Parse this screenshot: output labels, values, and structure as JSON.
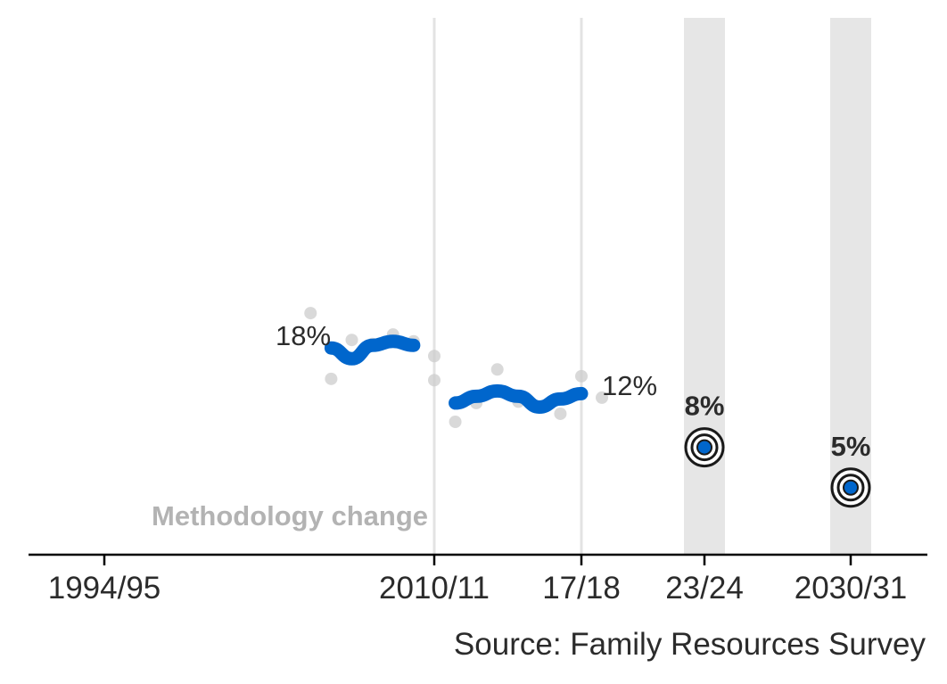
{
  "chart_data": {
    "type": "line",
    "title": "",
    "xlabel": "",
    "ylabel": "",
    "x_ticks": [
      "1994/95",
      "2010/11",
      "17/18",
      "23/24",
      "2030/31"
    ],
    "ylim": [
      0,
      40
    ],
    "series": [
      {
        "role": "annual_estimates",
        "color": "#cccccc",
        "points": [
          {
            "x": 2004,
            "y": 18.0
          },
          {
            "x": 2005,
            "y": 13.1
          },
          {
            "x": 2006,
            "y": 16.0
          },
          {
            "x": 2007,
            "y": 15.7
          },
          {
            "x": 2008,
            "y": 16.4
          },
          {
            "x": 2009,
            "y": 15.9
          },
          {
            "x": 2010,
            "y": 14.8
          },
          {
            "x": 2010,
            "y": 13.0
          },
          {
            "x": 2011,
            "y": 9.9
          },
          {
            "x": 2012,
            "y": 11.3
          },
          {
            "x": 2013,
            "y": 13.8
          },
          {
            "x": 2014,
            "y": 11.4
          },
          {
            "x": 2015,
            "y": 11.0
          },
          {
            "x": 2016,
            "y": 10.5
          },
          {
            "x": 2017,
            "y": 13.3
          },
          {
            "x": 2018,
            "y": 11.7
          }
        ]
      },
      {
        "role": "trend",
        "color": "#0066cc",
        "segments": [
          [
            {
              "x": 2005,
              "y": 15.4
            },
            {
              "x": 2006,
              "y": 14.6
            },
            {
              "x": 2007,
              "y": 15.6
            },
            {
              "x": 2008,
              "y": 15.9
            },
            {
              "x": 2009,
              "y": 15.6
            }
          ],
          [
            {
              "x": 2011,
              "y": 11.3
            },
            {
              "x": 2012,
              "y": 11.8
            },
            {
              "x": 2013,
              "y": 12.2
            },
            {
              "x": 2014,
              "y": 11.8
            },
            {
              "x": 2015,
              "y": 11.0
            },
            {
              "x": 2016,
              "y": 11.6
            },
            {
              "x": 2017,
              "y": 12.0
            }
          ]
        ]
      },
      {
        "role": "targets",
        "color": "#0066cc",
        "points": [
          {
            "x": 2023,
            "y": 8,
            "label": "8%"
          },
          {
            "x": 2030,
            "y": 5,
            "label": "5%"
          }
        ]
      }
    ],
    "annotations": {
      "start_label": "18%",
      "end_label": "12%",
      "methodology": "Methodology change"
    },
    "reference_lines": [
      2010,
      2017
    ],
    "shaded_bands": [
      2023,
      2030
    ],
    "source": "Source: Family Resources Survey",
    "grid": false
  }
}
